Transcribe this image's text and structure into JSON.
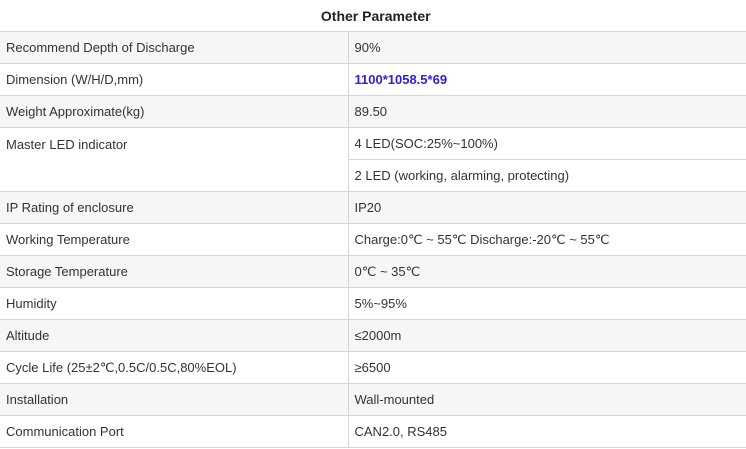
{
  "title": "Other Parameter",
  "rows": [
    {
      "label": "Recommend Depth of Discharge",
      "value": "90%"
    },
    {
      "label": "Dimension (W/H/D,mm)",
      "value": "1100*1058.5*69"
    },
    {
      "label": "Weight Approximate(kg)",
      "value": "89.50"
    },
    {
      "label": "Master LED indicator",
      "value": "4 LED(SOC:25%~100%)",
      "value2": "2 LED (working, alarming, protecting)"
    },
    {
      "label": "IP Rating of enclosure",
      "value": "IP20"
    },
    {
      "label": "Working Temperature",
      "value": "Charge:0℃ ~ 55℃ Discharge:-20℃ ~ 55℃"
    },
    {
      "label": "Storage Temperature",
      "value": "0℃ ~ 35℃"
    },
    {
      "label": "Humidity",
      "value": "5%~95%"
    },
    {
      "label": "Altitude",
      "value": "≤2000m"
    },
    {
      "label": "Cycle Life (25±2℃,0.5C/0.5C,80%EOL)",
      "value": "≥6500"
    },
    {
      "label": "Installation",
      "value": "Wall-mounted"
    },
    {
      "label": "Communication Port",
      "value": "CAN2.0, RS485"
    }
  ],
  "highlight_color": "#2b1fd1"
}
